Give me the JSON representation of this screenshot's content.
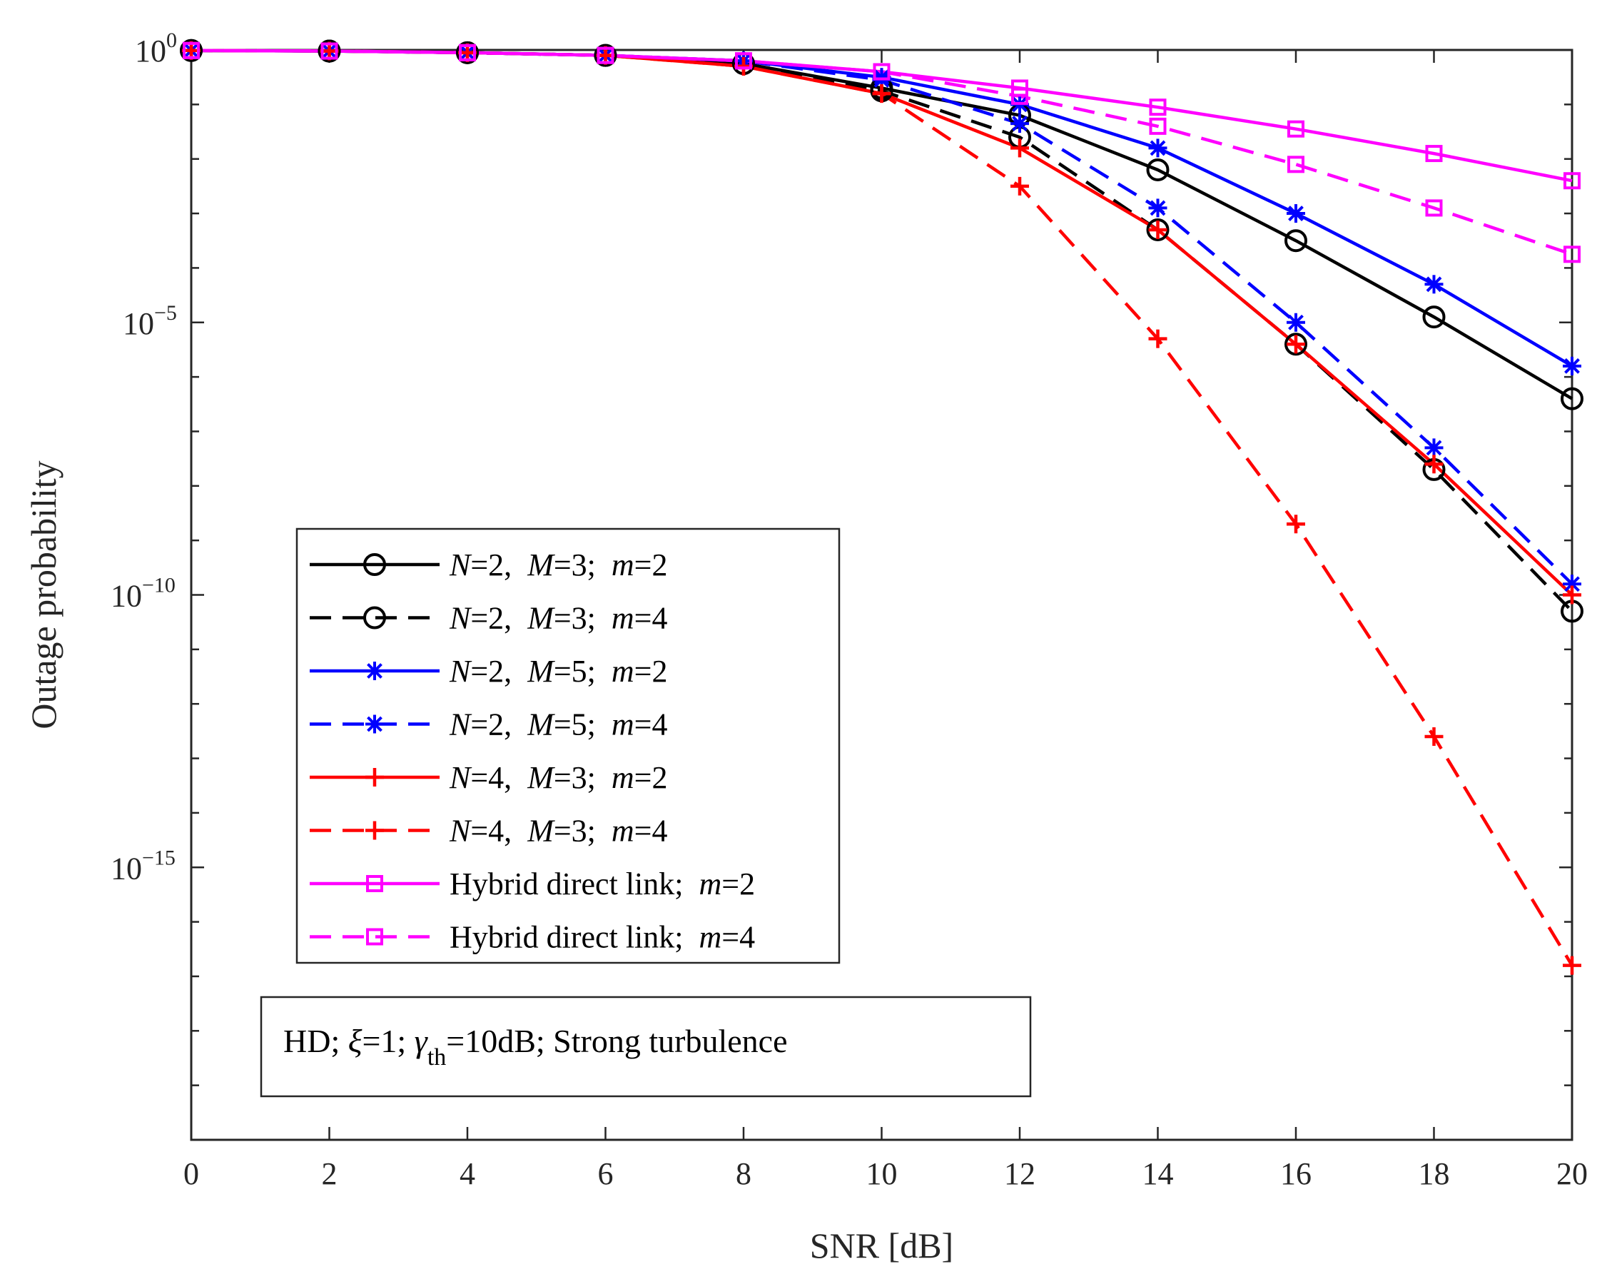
{
  "chart_data": {
    "type": "line",
    "title": "",
    "xlabel": "SNR [dB]",
    "ylabel": "Outage probability",
    "yscale": "log",
    "xlim": [
      0,
      20
    ],
    "ylim_exp": [
      -20,
      0
    ],
    "x_ticks": [
      0,
      2,
      4,
      6,
      8,
      10,
      12,
      14,
      16,
      18,
      20
    ],
    "x_tick_labels": [
      "0",
      "2",
      "4",
      "6",
      "8",
      "10",
      "12",
      "14",
      "16",
      "18",
      "20"
    ],
    "y_ticks_exp": [
      0,
      -5,
      -10,
      -15
    ],
    "y_tick_base": "10",
    "y_tick_exponents": [
      "0",
      "−5",
      "−10",
      "−15"
    ],
    "grid": false,
    "legend_position": "lower-left",
    "x": [
      0,
      2,
      4,
      6,
      8,
      10,
      12,
      14,
      16,
      18,
      20
    ],
    "series": [
      {
        "name": "N=2, M=3; m=2",
        "label_parts": [
          [
            "N",
            true
          ],
          [
            "=2,  ",
            false
          ],
          [
            "M",
            true
          ],
          [
            "=3;  ",
            false
          ],
          [
            "m",
            true
          ],
          [
            "=2",
            false
          ]
        ],
        "color": "#000000",
        "dash": "solid",
        "marker": "circle",
        "log10_values": [
          -0.01,
          -0.02,
          -0.05,
          -0.1,
          -0.25,
          -0.7,
          -1.2,
          -2.2,
          -3.5,
          -4.9,
          -6.4
        ]
      },
      {
        "name": "N=2, M=3; m=4",
        "label_parts": [
          [
            "N",
            true
          ],
          [
            "=2,  ",
            false
          ],
          [
            "M",
            true
          ],
          [
            "=3;  ",
            false
          ],
          [
            "m",
            true
          ],
          [
            "=4",
            false
          ]
        ],
        "color": "#000000",
        "dash": "dashed",
        "marker": "circle",
        "log10_values": [
          -0.01,
          -0.02,
          -0.05,
          -0.1,
          -0.25,
          -0.75,
          -1.6,
          -3.3,
          -5.4,
          -7.7,
          -10.3
        ]
      },
      {
        "name": "N=2, M=5; m=2",
        "label_parts": [
          [
            "N",
            true
          ],
          [
            "=2,  ",
            false
          ],
          [
            "M",
            true
          ],
          [
            "=5;  ",
            false
          ],
          [
            "m",
            true
          ],
          [
            "=2",
            false
          ]
        ],
        "color": "#0000ff",
        "dash": "solid",
        "marker": "asterisk",
        "log10_values": [
          -0.01,
          -0.02,
          -0.05,
          -0.1,
          -0.2,
          -0.5,
          -1.0,
          -1.8,
          -3.0,
          -4.3,
          -5.8
        ]
      },
      {
        "name": "N=2, M=5; m=4",
        "label_parts": [
          [
            "N",
            true
          ],
          [
            "=2,  ",
            false
          ],
          [
            "M",
            true
          ],
          [
            "=5;  ",
            false
          ],
          [
            "m",
            true
          ],
          [
            "=4",
            false
          ]
        ],
        "color": "#0000ff",
        "dash": "dashed",
        "marker": "asterisk",
        "log10_values": [
          -0.01,
          -0.02,
          -0.05,
          -0.1,
          -0.2,
          -0.55,
          -1.35,
          -2.9,
          -5.0,
          -7.3,
          -9.8
        ]
      },
      {
        "name": "N=4, M=3; m=2",
        "label_parts": [
          [
            "N",
            true
          ],
          [
            "=4,  ",
            false
          ],
          [
            "M",
            true
          ],
          [
            "=3;  ",
            false
          ],
          [
            "m",
            true
          ],
          [
            "=2",
            false
          ]
        ],
        "color": "#ff0000",
        "dash": "solid",
        "marker": "plus",
        "log10_values": [
          -0.01,
          -0.02,
          -0.05,
          -0.1,
          -0.3,
          -0.8,
          -1.8,
          -3.3,
          -5.4,
          -7.6,
          -10.0
        ]
      },
      {
        "name": "N=4, M=3; m=4",
        "label_parts": [
          [
            "N",
            true
          ],
          [
            "=4,  ",
            false
          ],
          [
            "M",
            true
          ],
          [
            "=3;  ",
            false
          ],
          [
            "m",
            true
          ],
          [
            "=4",
            false
          ]
        ],
        "color": "#ff0000",
        "dash": "dashed",
        "marker": "plus",
        "log10_values": [
          -0.01,
          -0.02,
          -0.05,
          -0.1,
          -0.3,
          -0.8,
          -2.5,
          -5.3,
          -8.7,
          -12.6,
          -16.8
        ]
      },
      {
        "name": "Hybrid direct link; m=2",
        "label_parts": [
          [
            "Hybrid direct link;  ",
            false
          ],
          [
            "m",
            true
          ],
          [
            "=2",
            false
          ]
        ],
        "color": "#ff00ff",
        "dash": "solid",
        "marker": "square",
        "log10_values": [
          -0.01,
          -0.02,
          -0.05,
          -0.1,
          -0.2,
          -0.4,
          -0.7,
          -1.05,
          -1.45,
          -1.9,
          -2.4
        ]
      },
      {
        "name": "Hybrid direct link; m=4",
        "label_parts": [
          [
            "Hybrid direct link;  ",
            false
          ],
          [
            "m",
            true
          ],
          [
            "=4",
            false
          ]
        ],
        "color": "#ff00ff",
        "dash": "dashed",
        "marker": "square",
        "log10_values": [
          -0.01,
          -0.02,
          -0.05,
          -0.1,
          -0.2,
          -0.4,
          -0.85,
          -1.4,
          -2.1,
          -2.9,
          -3.75
        ]
      }
    ],
    "annotation": {
      "parts": [
        [
          "HD; ",
          false,
          ""
        ],
        [
          "ξ",
          true,
          ""
        ],
        [
          "=1; ",
          false,
          ""
        ],
        [
          "γ",
          true,
          ""
        ],
        [
          "th",
          false,
          "sub"
        ],
        [
          "=10dB; Strong turbulence",
          false,
          ""
        ]
      ]
    }
  }
}
